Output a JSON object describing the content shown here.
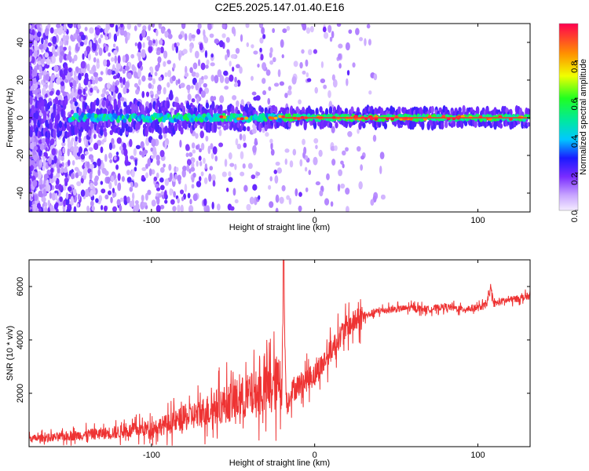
{
  "chart_data": [
    {
      "type": "heatmap",
      "title": "C2E5.2025.147.01.40.E16",
      "xlabel": "Height of straight line (km)",
      "ylabel": "Frequency (Hz)",
      "xlim": [
        -175,
        132
      ],
      "ylim": [
        -50,
        50
      ],
      "xticks": [
        "-100",
        "0",
        "100"
      ],
      "xtick_values": [
        -100,
        0,
        100
      ],
      "yticks": [
        "-40",
        "-20",
        "0",
        "20",
        "40"
      ],
      "ytick_values": [
        -40,
        -20,
        0,
        20,
        40
      ],
      "colorbar": {
        "label": "Normalized spectral amplitude",
        "range": [
          0,
          1
        ],
        "ticks": [
          "0.0",
          "0.2",
          "0.4",
          "0.6",
          "0.8"
        ],
        "tick_values": [
          0.0,
          0.2,
          0.4,
          0.6,
          0.8
        ]
      },
      "colors": {
        "low": "#f3e8ff",
        "mid": "#00e0e0",
        "high": "#ff0044"
      }
    },
    {
      "type": "line",
      "title": "",
      "xlabel": "Height of straight line (km)",
      "ylabel": "SNR (10 * v/v)",
      "xlim": [
        -175,
        132
      ],
      "ylim": [
        0,
        7000
      ],
      "xticks": [
        "-100",
        "0",
        "100"
      ],
      "xtick_values": [
        -100,
        0,
        100
      ],
      "yticks": [
        "2000",
        "4000",
        "6000"
      ],
      "ytick_values": [
        2000,
        4000,
        6000
      ],
      "series": [
        {
          "name": "SNR",
          "color": "#ee3333",
          "x": [
            -175,
            -160,
            -140,
            -120,
            -100,
            -90,
            -80,
            -70,
            -60,
            -50,
            -40,
            -30,
            -25,
            -20,
            -19,
            -18,
            -17,
            -15,
            -10,
            -5,
            0,
            5,
            10,
            15,
            20,
            25,
            30,
            35,
            40,
            50,
            60,
            70,
            80,
            90,
            100,
            105,
            108,
            110,
            115,
            120,
            125,
            132
          ],
          "values": [
            300,
            350,
            450,
            550,
            700,
            850,
            1050,
            1250,
            1500,
            1700,
            1900,
            2100,
            2300,
            2500,
            7000,
            3000,
            1500,
            2000,
            2300,
            2500,
            2700,
            3100,
            3600,
            4100,
            4500,
            4700,
            4850,
            5000,
            5100,
            5150,
            5200,
            5150,
            5250,
            5150,
            5200,
            5300,
            5900,
            5350,
            5450,
            5500,
            5550,
            5650
          ]
        }
      ]
    }
  ]
}
